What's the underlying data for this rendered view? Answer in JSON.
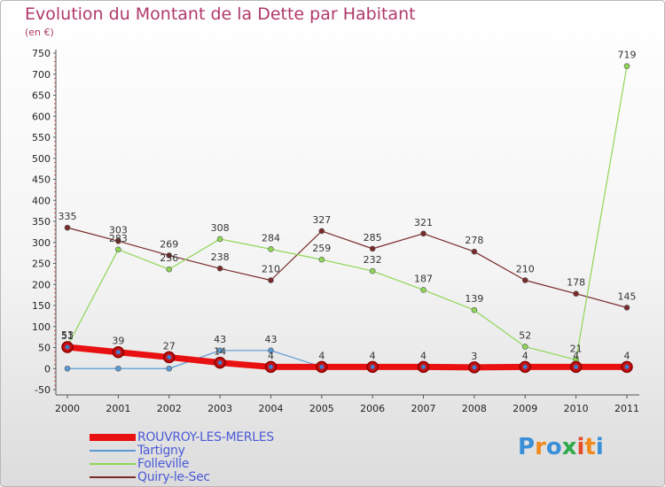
{
  "title": "Evolution du Montant de la Dette par Habitant",
  "subtitle": "(en €)",
  "logo": {
    "text": "Proxiti",
    "colors": [
      "#3a8fd8",
      "#f08a1c",
      "#3a8fd8",
      "#2eaa4a",
      "#e64b2a",
      "#f08a1c",
      "#3a8fd8"
    ]
  },
  "chart_data": {
    "type": "line",
    "title": "Evolution du Montant de la Dette par Habitant",
    "ylabel": "(en €)",
    "x": [
      "2000",
      "2001",
      "2002",
      "2003",
      "2004",
      "2005",
      "2006",
      "2007",
      "2008",
      "2009",
      "2010",
      "2011"
    ],
    "ylim": [
      -50,
      750
    ],
    "yticks": [
      -50,
      0,
      50,
      100,
      150,
      200,
      250,
      300,
      350,
      400,
      450,
      500,
      550,
      600,
      650,
      700,
      750
    ],
    "grid": false,
    "legend_position": "bottom-left",
    "series": [
      {
        "name": "ROUVROY-LES-MERLES",
        "color": "#e81010",
        "values": [
          51,
          39,
          27,
          14,
          4,
          4,
          4,
          4,
          3,
          4,
          4,
          4
        ],
        "labels": [
          "51",
          "39",
          "27",
          "14",
          "4",
          "4",
          "4",
          "4",
          "3",
          "4",
          "4",
          "4"
        ]
      },
      {
        "name": "Tartigny",
        "color": "#5b9bd5",
        "values": [
          0,
          0,
          0,
          43,
          43,
          4,
          4,
          4,
          4,
          4,
          4,
          4
        ],
        "labels": [
          "",
          "",
          "",
          "43",
          "43",
          "",
          "",
          "",
          "",
          "",
          "",
          ""
        ]
      },
      {
        "name": "Folleville",
        "color": "#8fd656",
        "values": [
          53,
          283,
          236,
          308,
          284,
          259,
          232,
          187,
          139,
          52,
          21,
          719
        ],
        "labels": [
          "53",
          "283",
          "236",
          "308",
          "284",
          "259",
          "232",
          "187",
          "139",
          "52",
          "21",
          "719"
        ]
      },
      {
        "name": "Quiry-le-Sec",
        "color": "#7a2a2a",
        "values": [
          335,
          303,
          269,
          238,
          210,
          327,
          285,
          321,
          278,
          210,
          178,
          145
        ],
        "labels": [
          "335",
          "303",
          "269",
          "238",
          "210",
          "327",
          "285",
          "321",
          "278",
          "210",
          "178",
          "145"
        ]
      }
    ]
  }
}
